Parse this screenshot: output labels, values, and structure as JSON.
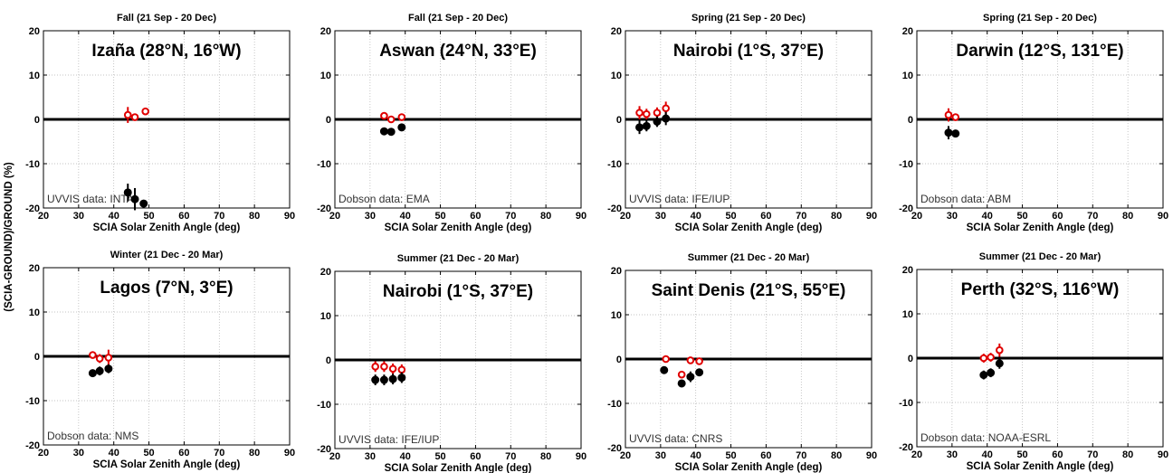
{
  "figure": {
    "ylabel": "(SCIA-GROUND)/GROUND (%)",
    "xlabel": "SCIA Solar Zenith Angle (deg)"
  },
  "chart_data": [
    {
      "type": "scatter",
      "season": "Fall (21 Sep - 20 Dec)",
      "title": "Izaña (28°N, 16°W)",
      "note": "UVVIS data: INTA",
      "xlabel": "SCIA Solar Zenith Angle (deg)",
      "ylabel": "(SCIA-GROUND)/GROUND (%)",
      "xlim": [
        20,
        90
      ],
      "ylim": [
        -20,
        20
      ],
      "xticks": [
        20,
        30,
        40,
        50,
        60,
        70,
        80,
        90
      ],
      "yticks": [
        20,
        10,
        0,
        -10,
        -20
      ],
      "grid": true,
      "series": [
        {
          "color": "#e00000",
          "marker": "open-circle",
          "x": [
            44,
            46,
            49
          ],
          "y": [
            1.0,
            0.5,
            1.8
          ],
          "err": [
            1.8,
            0.6,
            0.5
          ]
        },
        {
          "color": "#000000",
          "marker": "filled-circle",
          "x": [
            44,
            46,
            48.5
          ],
          "y": [
            -16.5,
            -18.0,
            -19.0
          ],
          "err": [
            2.0,
            2.5,
            0.8
          ]
        }
      ]
    },
    {
      "type": "scatter",
      "season": "Fall (21 Sep - 20 Dec)",
      "title": "Aswan (24°N, 33°E)",
      "note": "Dobson data: EMA",
      "xlabel": "SCIA Solar Zenith Angle (deg)",
      "ylabel": "(SCIA-GROUND)/GROUND (%)",
      "xlim": [
        20,
        90
      ],
      "ylim": [
        -20,
        20
      ],
      "xticks": [
        20,
        30,
        40,
        50,
        60,
        70,
        80,
        90
      ],
      "yticks": [
        20,
        10,
        0,
        -10,
        -20
      ],
      "grid": true,
      "series": [
        {
          "color": "#e00000",
          "marker": "open-circle",
          "x": [
            34,
            36,
            39
          ],
          "y": [
            0.8,
            0.0,
            0.5
          ],
          "err": [
            0.5,
            0.5,
            0.5
          ]
        },
        {
          "color": "#000000",
          "marker": "filled-circle",
          "x": [
            34,
            36,
            39
          ],
          "y": [
            -2.7,
            -2.8,
            -1.8
          ],
          "err": [
            0.5,
            0.5,
            0.6
          ]
        }
      ]
    },
    {
      "type": "scatter",
      "season": "Spring (21 Sep - 20 Dec)",
      "title": "Nairobi (1°S, 37°E)",
      "note": "UVVIS data: IFE/IUP",
      "xlabel": "SCIA Solar Zenith Angle (deg)",
      "ylabel": "(SCIA-GROUND)/GROUND (%)",
      "xlim": [
        20,
        90
      ],
      "ylim": [
        -20,
        20
      ],
      "xticks": [
        20,
        30,
        40,
        50,
        60,
        70,
        80,
        90
      ],
      "yticks": [
        20,
        10,
        0,
        -10,
        -20
      ],
      "grid": true,
      "series": [
        {
          "color": "#e00000",
          "marker": "open-circle",
          "x": [
            24,
            26,
            29,
            31.5
          ],
          "y": [
            1.5,
            1.2,
            1.5,
            2.5
          ],
          "err": [
            1.5,
            1.2,
            1.2,
            1.5
          ]
        },
        {
          "color": "#000000",
          "marker": "filled-circle",
          "x": [
            24,
            26,
            29,
            31.5
          ],
          "y": [
            -1.8,
            -1.5,
            -0.5,
            0.2
          ],
          "err": [
            1.5,
            1.2,
            1.2,
            1.5
          ]
        }
      ]
    },
    {
      "type": "scatter",
      "season": "Spring (21 Sep - 20 Dec)",
      "title": "Darwin (12°S, 131°E)",
      "note": "Dobson data: ABM",
      "xlabel": "SCIA Solar Zenith Angle (deg)",
      "ylabel": "(SCIA-GROUND)/GROUND (%)",
      "xlim": [
        20,
        90
      ],
      "ylim": [
        -20,
        20
      ],
      "xticks": [
        20,
        30,
        40,
        50,
        60,
        70,
        80,
        90
      ],
      "yticks": [
        20,
        10,
        0,
        -10,
        -20
      ],
      "grid": true,
      "series": [
        {
          "color": "#e00000",
          "marker": "open-circle",
          "x": [
            29,
            31
          ],
          "y": [
            1.0,
            0.5
          ],
          "err": [
            1.5,
            0.5
          ]
        },
        {
          "color": "#000000",
          "marker": "filled-circle",
          "x": [
            29,
            31
          ],
          "y": [
            -3.0,
            -3.2
          ],
          "err": [
            1.5,
            0.5
          ]
        }
      ]
    },
    {
      "type": "scatter",
      "season": "Winter (21 Dec - 20 Mar)",
      "title": "Lagos (7°N, 3°E)",
      "note": "Dobson data: NMS",
      "xlabel": "SCIA Solar Zenith Angle (deg)",
      "ylabel": "(SCIA-GROUND)/GROUND (%)",
      "xlim": [
        20,
        90
      ],
      "ylim": [
        -20,
        20
      ],
      "xticks": [
        20,
        30,
        40,
        50,
        60,
        70,
        80,
        90
      ],
      "yticks": [
        20,
        10,
        0,
        -10,
        -20
      ],
      "grid": true,
      "series": [
        {
          "color": "#e00000",
          "marker": "open-circle",
          "x": [
            34,
            36,
            38.5
          ],
          "y": [
            0.3,
            -0.5,
            -0.3
          ],
          "err": [
            0.5,
            1.0,
            1.8
          ]
        },
        {
          "color": "#000000",
          "marker": "filled-circle",
          "x": [
            34,
            36,
            38.5
          ],
          "y": [
            -3.8,
            -3.3,
            -2.8
          ],
          "err": [
            0.5,
            1.0,
            1.0
          ]
        }
      ]
    },
    {
      "type": "scatter",
      "season": "Summer (21 Dec - 20 Mar)",
      "title": "Nairobi (1°S, 37°E)",
      "note": "UVVIS data: IFE/IUP",
      "xlabel": "SCIA Solar Zenith Angle (deg)",
      "ylabel": "(SCIA-GROUND)/GROUND (%)",
      "xlim": [
        20,
        90
      ],
      "ylim": [
        -20,
        20
      ],
      "xticks": [
        20,
        30,
        40,
        50,
        60,
        70,
        80,
        90
      ],
      "yticks": [
        20,
        10,
        0,
        -10,
        -20
      ],
      "grid": true,
      "series": [
        {
          "color": "#e00000",
          "marker": "open-circle",
          "x": [
            31.5,
            34,
            36.5,
            39
          ],
          "y": [
            -1.5,
            -1.5,
            -2.0,
            -2.2
          ],
          "err": [
            1.2,
            1.2,
            1.2,
            1.2
          ]
        },
        {
          "color": "#000000",
          "marker": "filled-circle",
          "x": [
            31.5,
            34,
            36.5,
            39
          ],
          "y": [
            -4.5,
            -4.5,
            -4.3,
            -4.0
          ],
          "err": [
            1.2,
            1.2,
            1.2,
            1.2
          ]
        }
      ]
    },
    {
      "type": "scatter",
      "season": "Summer (21 Dec - 20 Mar)",
      "title": "Saint Denis (21°S, 55°E)",
      "note": "UVVIS data: CNRS",
      "xlabel": "SCIA Solar Zenith Angle (deg)",
      "ylabel": "(SCIA-GROUND)/GROUND (%)",
      "xlim": [
        20,
        90
      ],
      "ylim": [
        -20,
        20
      ],
      "xticks": [
        20,
        30,
        40,
        50,
        60,
        70,
        80,
        90
      ],
      "yticks": [
        20,
        10,
        0,
        -10,
        -20
      ],
      "grid": true,
      "series": [
        {
          "color": "#e00000",
          "marker": "open-circle",
          "x": [
            31.5,
            36,
            38.5,
            41
          ],
          "y": [
            0.0,
            -3.5,
            -0.3,
            -0.5
          ],
          "err": [
            0.3,
            0.5,
            0.4,
            0.4
          ]
        },
        {
          "color": "#000000",
          "marker": "filled-circle",
          "x": [
            31,
            36,
            38.5,
            41
          ],
          "y": [
            -2.5,
            -5.5,
            -4.0,
            -3.0
          ],
          "err": [
            0.5,
            0.8,
            1.2,
            0.8
          ]
        }
      ]
    },
    {
      "type": "scatter",
      "season": "Summer (21 Dec - 20 Mar)",
      "title": "Perth (32°S, 116°W)",
      "note": "Dobson data: NOAA-ESRL",
      "xlabel": "SCIA Solar Zenith Angle (deg)",
      "ylabel": "(SCIA-GROUND)/GROUND (%)",
      "xlim": [
        20,
        90
      ],
      "ylim": [
        -20,
        20
      ],
      "xticks": [
        20,
        30,
        40,
        50,
        60,
        70,
        80,
        90
      ],
      "yticks": [
        20,
        10,
        0,
        -10,
        -20
      ],
      "grid": true,
      "series": [
        {
          "color": "#e00000",
          "marker": "open-circle",
          "x": [
            39,
            41,
            43.5
          ],
          "y": [
            0.0,
            0.2,
            1.8
          ],
          "err": [
            1.0,
            1.0,
            1.5
          ]
        },
        {
          "color": "#000000",
          "marker": "filled-circle",
          "x": [
            39,
            41,
            43.5
          ],
          "y": [
            -3.8,
            -3.3,
            -1.2
          ],
          "err": [
            1.0,
            1.0,
            1.2
          ]
        }
      ]
    }
  ]
}
